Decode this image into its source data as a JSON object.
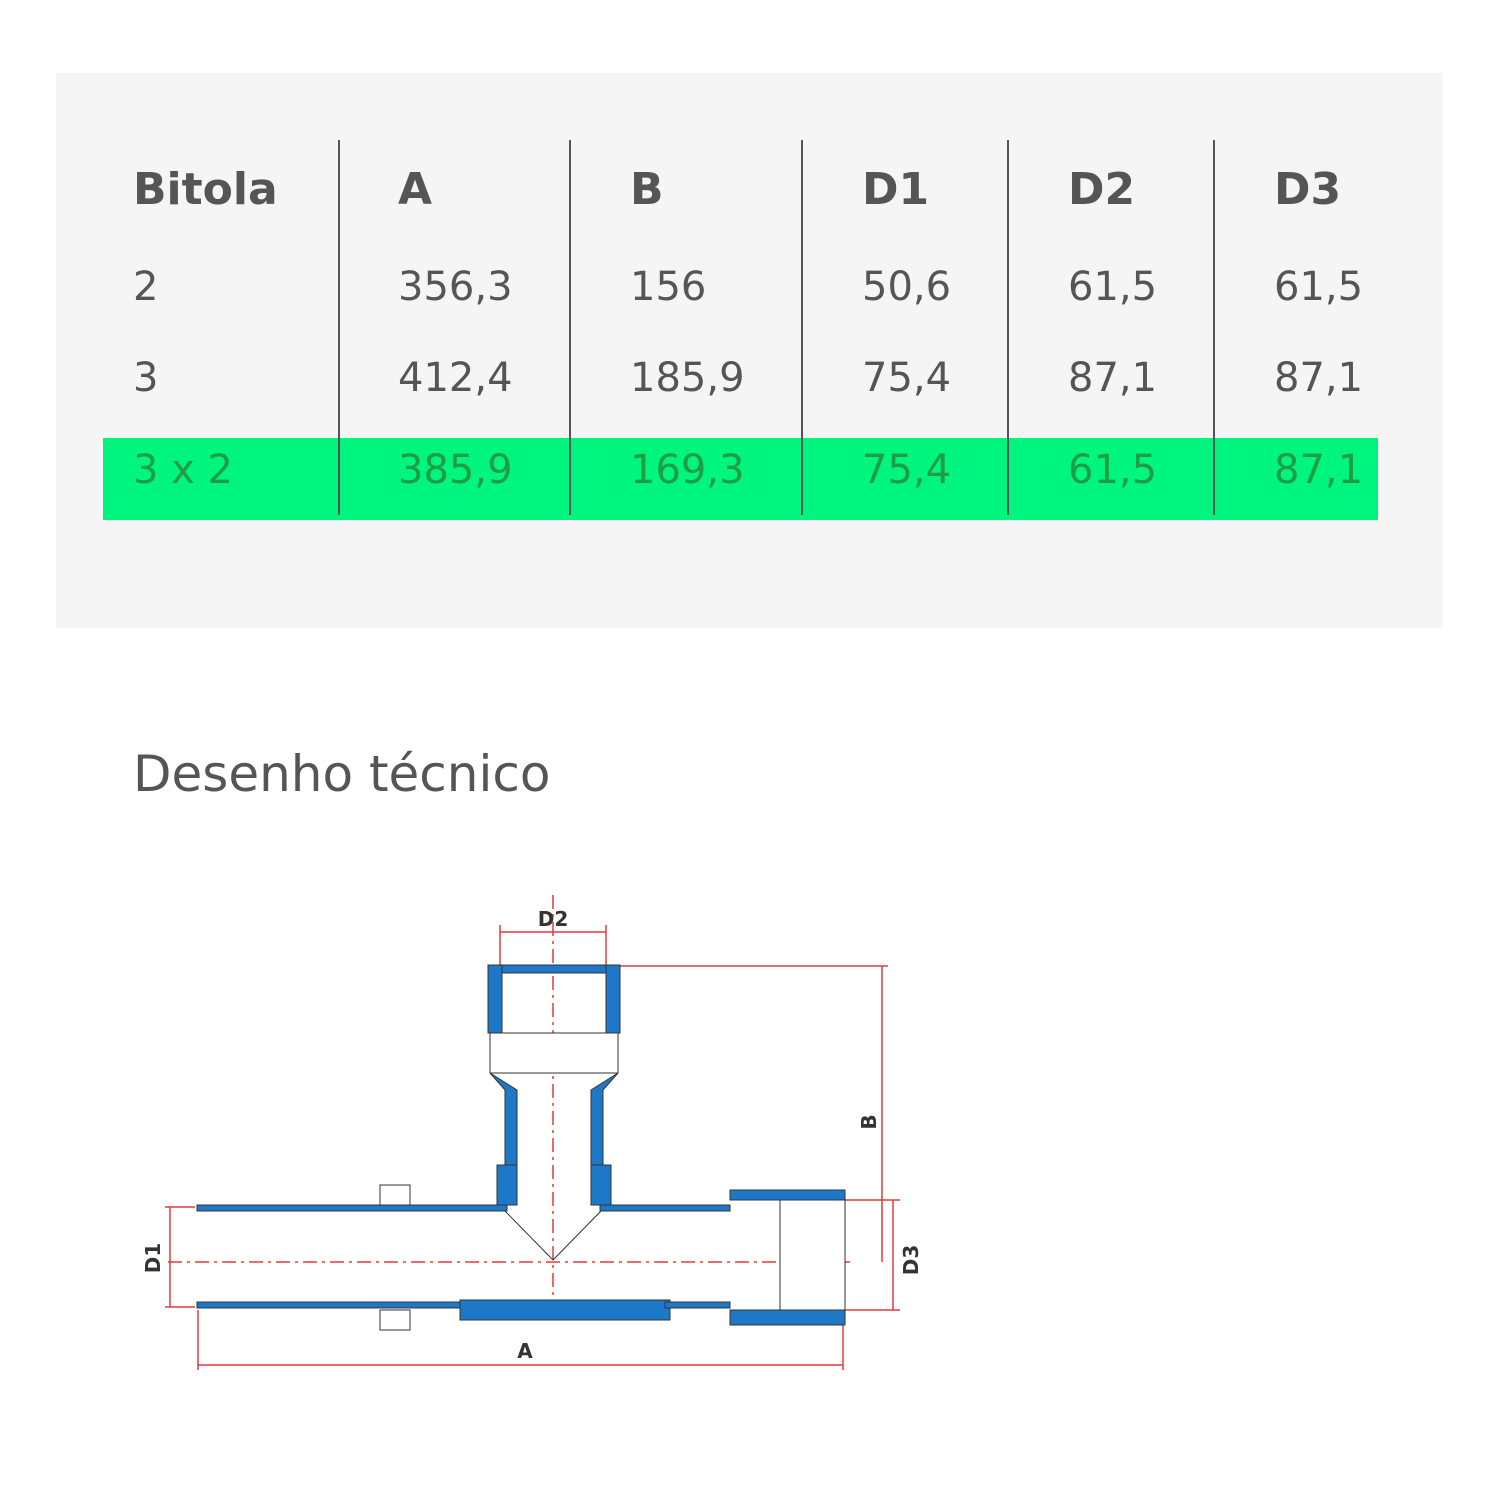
{
  "table": {
    "headers": [
      "Bitola",
      "A",
      "B",
      "D1",
      "D2",
      "D3"
    ],
    "rows": [
      [
        "2",
        "356,3",
        "156",
        "50,6",
        "61,5",
        "61,5"
      ],
      [
        "3",
        "412,4",
        "185,9",
        "75,4",
        "87,1",
        "87,1"
      ],
      [
        "3 x 2",
        "385,9",
        "169,3",
        "75,4",
        "61,5",
        "87,1"
      ]
    ],
    "highlighted_row": 2,
    "highlight_color": "#00f57f"
  },
  "section_title": "Desenho técnico",
  "drawing": {
    "labels": {
      "d2": "D2",
      "b": "B",
      "d1": "D1",
      "d3": "D3",
      "a": "A"
    },
    "pipe_color": "#1e78c8",
    "dimension_color": "#e03c3c"
  }
}
